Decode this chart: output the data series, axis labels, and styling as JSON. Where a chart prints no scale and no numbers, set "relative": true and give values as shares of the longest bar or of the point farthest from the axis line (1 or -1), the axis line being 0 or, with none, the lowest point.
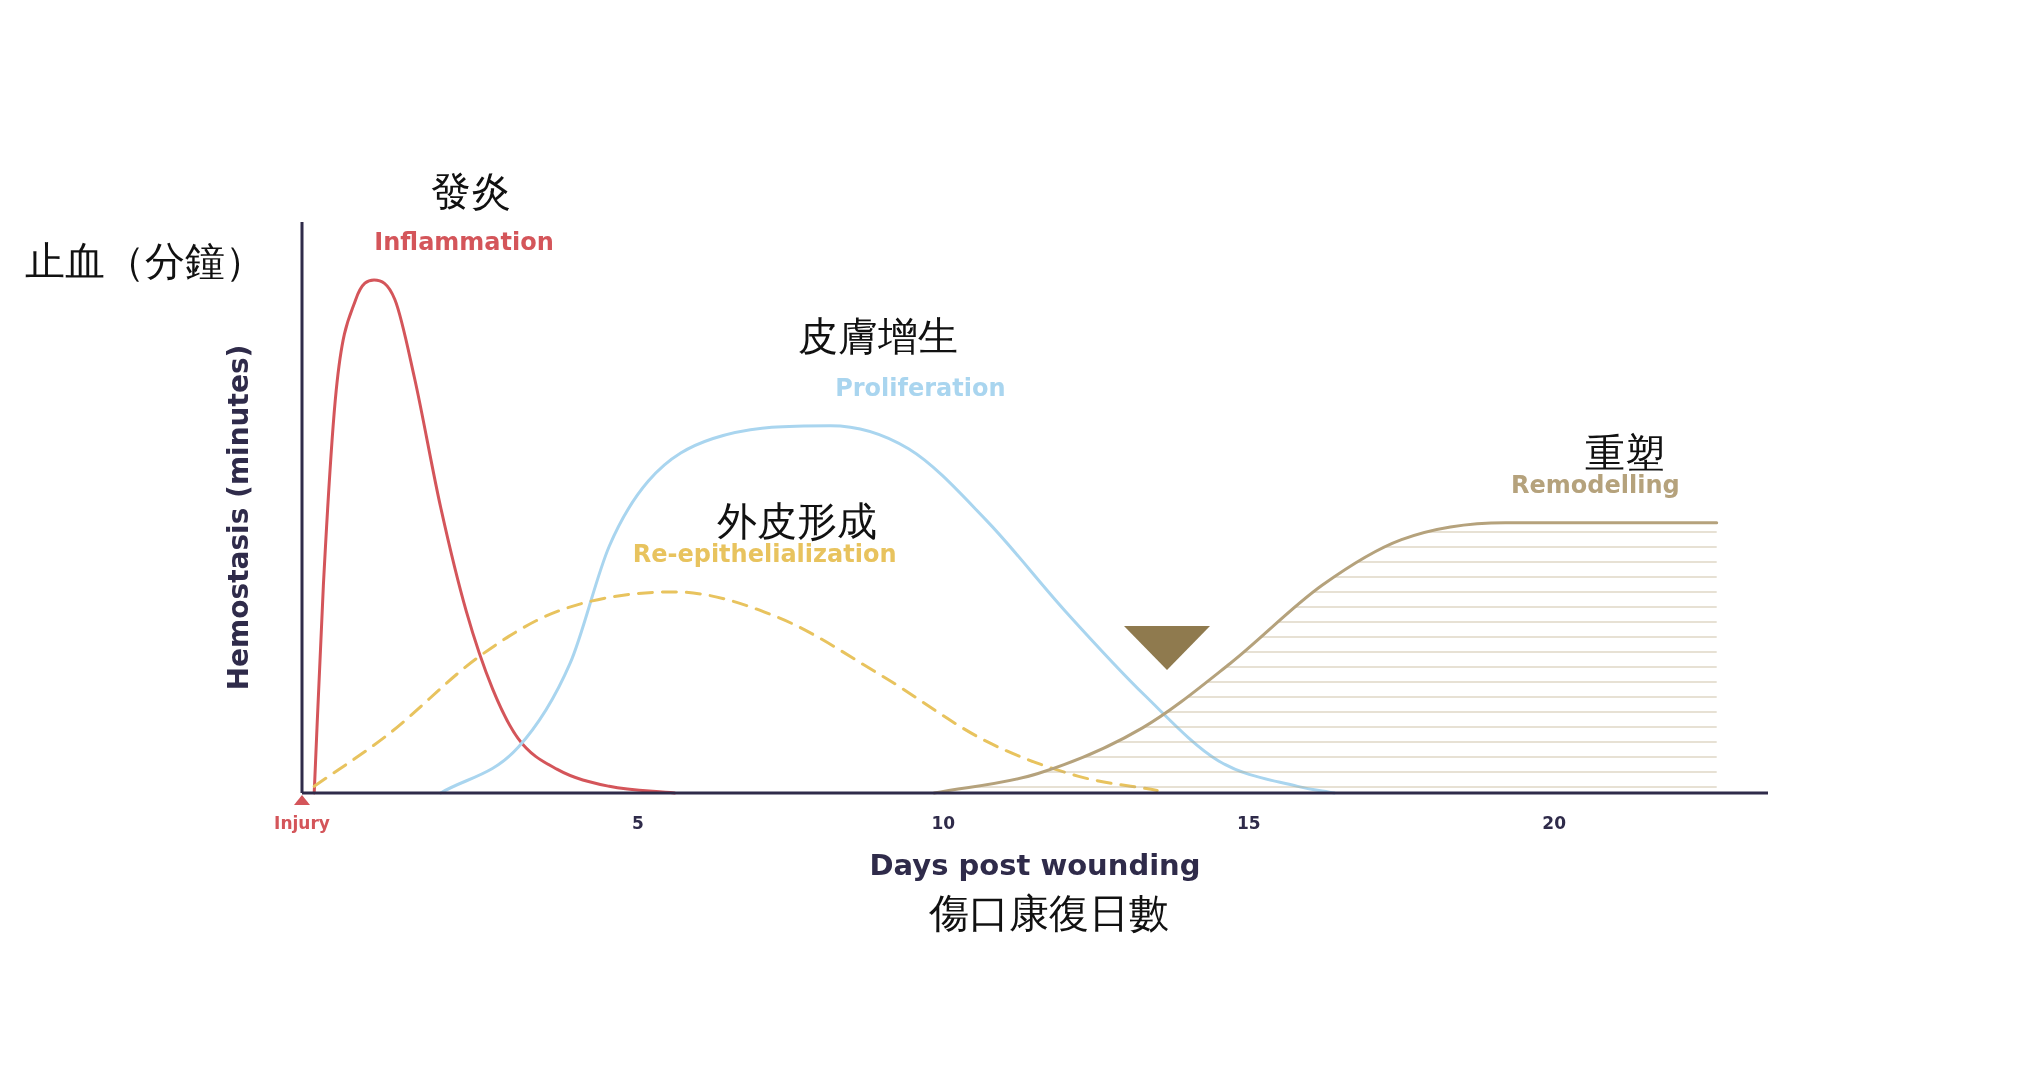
{
  "chart_data": {
    "type": "line",
    "relative": true,
    "xlabel": "Days post wounding",
    "ylabel": "Hemostasis (minutes)",
    "xlim": [
      -0.5,
      23.5
    ],
    "xticks": [
      {
        "value": -0.5,
        "label": "Injury"
      },
      5,
      10,
      15,
      20
    ],
    "series": [
      {
        "name": "Inflammation",
        "color": "#d4555a",
        "line_style": "solid",
        "x": [
          -0.3,
          -0.15,
          0.06,
          0.38,
          0.68,
          1.02,
          1.34,
          1.77,
          2.19,
          2.62,
          3.04,
          3.68,
          4.53,
          5.6
        ],
        "values": [
          0,
          0.405,
          0.785,
          0.962,
          1,
          0.962,
          0.81,
          0.557,
          0.354,
          0.203,
          0.106,
          0.046,
          0.013,
          0
        ]
      },
      {
        "name": "Proliferation",
        "color": "#a9d5ef",
        "line_style": "solid",
        "x": [
          1.77,
          3.04,
          3.89,
          4.53,
          5.17,
          6.23,
          8.15,
          9.43,
          10.7,
          12.0,
          13.3,
          14.5,
          15.8,
          16.4
        ],
        "values": [
          0,
          0.089,
          0.253,
          0.481,
          0.608,
          0.691,
          0.716,
          0.671,
          0.532,
          0.354,
          0.19,
          0.063,
          0.013,
          0
        ]
      },
      {
        "name": "Re-epithelialization",
        "color": "#e8c35e",
        "line_style": "dashed",
        "x": [
          -0.3,
          0.91,
          2.4,
          3.68,
          5.6,
          7.3,
          9.0,
          10.7,
          12.2,
          13.5
        ],
        "values": [
          0.013,
          0.114,
          0.266,
          0.354,
          0.392,
          0.342,
          0.228,
          0.101,
          0.033,
          0.005
        ]
      },
      {
        "name": "Remodelling",
        "color": "#b5a27c",
        "type": "area",
        "line_style": "solid",
        "x": [
          9.85,
          11.55,
          13.26,
          14.7,
          16.2,
          17.5,
          19.2,
          22.66
        ],
        "values": [
          0,
          0.038,
          0.127,
          0.253,
          0.405,
          0.494,
          0.527,
          0.527
        ]
      }
    ],
    "annotations": [
      "止血（分鐘）",
      "傷口康復日數",
      "發炎",
      "皮膚增生",
      "外皮形成",
      "重塑"
    ]
  }
}
